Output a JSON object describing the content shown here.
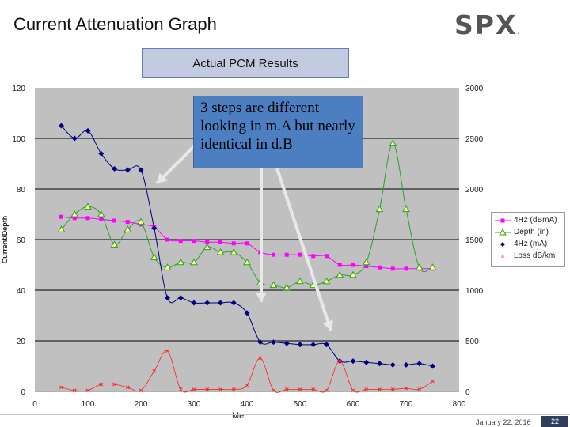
{
  "slide": {
    "title": "Current Attenuation Graph",
    "logo_text": "SPX",
    "logo_mark": ".",
    "box_label": "Actual PCM Results",
    "callout": "3 steps are different looking in m.A but nearly identical in d.B",
    "footer_date": "January 22, 2016",
    "page_number": "22",
    "xlabel_partial": "Met"
  },
  "colors": {
    "plot_bg": "#c0c0c0",
    "gridline": "#000000",
    "magenta": "#ff00ff",
    "green": "#2ca02c",
    "navy": "#000080",
    "red": "#ff2020",
    "callout_bg": "#4b7fc1",
    "arrow": "#e8e8e8"
  },
  "chart_data": {
    "type": "line",
    "title": "Actual PCM Results",
    "xlabel": "Meters",
    "ylabel_left": "Current/Depth",
    "ylabel_right": "Loss dB/km",
    "xlim": [
      0,
      800
    ],
    "ylim_left": [
      0,
      120
    ],
    "ylim_right": [
      0,
      3000
    ],
    "x_ticks": [
      "0",
      "100",
      "200",
      "300",
      "400",
      "500",
      "600",
      "700",
      "800"
    ],
    "y_left_ticks": [
      "0",
      "20",
      "40",
      "60",
      "80",
      "100",
      "120"
    ],
    "y_right_ticks": [
      "0",
      "500",
      "1000",
      "1500",
      "2000",
      "2500",
      "3000"
    ],
    "grid": "horizontal",
    "legend": "right",
    "series": [
      {
        "name": "4Hz (dBmA)",
        "axis": "left",
        "marker": "square",
        "color": "#ff00ff",
        "x": [
          50,
          75,
          100,
          125,
          150,
          175,
          200,
          225,
          250,
          275,
          300,
          325,
          350,
          375,
          400,
          425,
          450,
          475,
          500,
          525,
          550,
          575,
          600,
          625,
          650,
          675,
          700,
          725,
          750
        ],
        "y": [
          69,
          68.5,
          68.5,
          68,
          67.5,
          67,
          66,
          65,
          60,
          59.5,
          59.5,
          59,
          59,
          58.5,
          58.5,
          55,
          54,
          54,
          54,
          53.5,
          53.5,
          50,
          50,
          49.5,
          49,
          48.5,
          48.5,
          48.5,
          48.5
        ]
      },
      {
        "name": "Depth (in)",
        "axis": "left",
        "marker": "triangle",
        "color": "#2ca02c",
        "x": [
          50,
          75,
          100,
          125,
          150,
          175,
          200,
          225,
          250,
          275,
          300,
          325,
          350,
          375,
          400,
          425,
          450,
          475,
          500,
          525,
          550,
          575,
          600,
          625,
          650,
          675,
          700,
          725,
          750
        ],
        "y": [
          64,
          70,
          73,
          70,
          58,
          64,
          67,
          53,
          49,
          51,
          51,
          57,
          55,
          55,
          51,
          43,
          42,
          41,
          43.5,
          42,
          43.5,
          46,
          46,
          51,
          72,
          98,
          72,
          49,
          49
        ]
      },
      {
        "name": "4Hz (mA)",
        "axis": "left",
        "marker": "diamond",
        "color": "#000080",
        "x": [
          50,
          75,
          100,
          125,
          150,
          175,
          200,
          225,
          250,
          275,
          300,
          325,
          350,
          375,
          400,
          425,
          450,
          475,
          500,
          525,
          550,
          575,
          600,
          625,
          650,
          675,
          700,
          725,
          750
        ],
        "y": [
          105,
          100,
          103,
          94,
          88,
          87.5,
          87.5,
          64.5,
          37,
          37,
          35,
          35,
          35,
          35,
          31,
          19.5,
          19.5,
          19,
          18.5,
          18.5,
          18.5,
          12,
          12,
          11.5,
          11,
          10.5,
          10.5,
          11,
          10
        ]
      },
      {
        "name": "Loss dB/km",
        "axis": "right",
        "marker": "x",
        "color": "#ff2020",
        "x": [
          50,
          75,
          100,
          125,
          150,
          175,
          200,
          225,
          250,
          275,
          300,
          325,
          350,
          375,
          400,
          425,
          450,
          475,
          500,
          525,
          550,
          575,
          600,
          625,
          650,
          675,
          700,
          725,
          750
        ],
        "y": [
          40,
          10,
          10,
          70,
          70,
          40,
          10,
          200,
          400,
          20,
          20,
          20,
          20,
          20,
          60,
          330,
          10,
          20,
          20,
          20,
          10,
          300,
          10,
          20,
          20,
          20,
          30,
          20,
          100
        ]
      }
    ]
  }
}
